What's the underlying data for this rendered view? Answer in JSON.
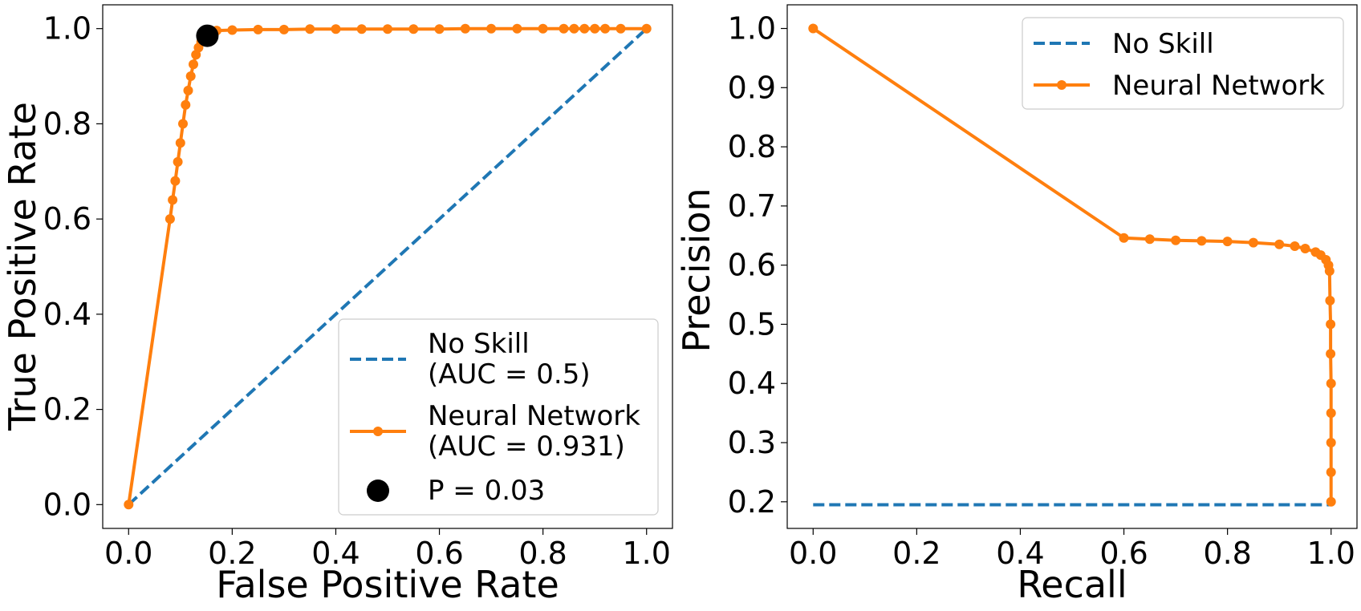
{
  "chart_data": [
    {
      "type": "line",
      "xlabel": "False Positive Rate",
      "ylabel": "True Positive Rate",
      "xlim": [
        -0.05,
        1.05
      ],
      "ylim": [
        -0.05,
        1.05
      ],
      "xticks": [
        "0.0",
        "0.2",
        "0.4",
        "0.6",
        "0.8",
        "1.0"
      ],
      "yticks": [
        "0.0",
        "0.2",
        "0.4",
        "0.6",
        "0.8",
        "1.0"
      ],
      "legend_position": "lower-right",
      "series": [
        {
          "name": "No Skill",
          "legend_lines": [
            "No Skill",
            "(AUC = 0.5)"
          ],
          "style": "dashed",
          "color": "#1f77b4",
          "x": [
            0,
            1
          ],
          "y": [
            0,
            1
          ]
        },
        {
          "name": "Neural Network",
          "legend_lines": [
            "Neural Network",
            "(AUC = 0.931)"
          ],
          "style": "solid-markers",
          "color": "#ff7f0e",
          "x": [
            0,
            0.08,
            0.085,
            0.09,
            0.095,
            0.1,
            0.105,
            0.11,
            0.115,
            0.12,
            0.125,
            0.13,
            0.135,
            0.14,
            0.145,
            0.15,
            0.155,
            0.16,
            0.17,
            0.2,
            0.25,
            0.3,
            0.35,
            0.4,
            0.45,
            0.5,
            0.55,
            0.6,
            0.65,
            0.7,
            0.75,
            0.8,
            0.84,
            0.86,
            0.88,
            0.9,
            0.92,
            0.95,
            1.0
          ],
          "y": [
            0,
            0.6,
            0.64,
            0.68,
            0.72,
            0.76,
            0.8,
            0.84,
            0.87,
            0.9,
            0.925,
            0.945,
            0.96,
            0.972,
            0.981,
            0.987,
            0.992,
            0.995,
            0.996,
            0.997,
            0.998,
            0.998,
            0.999,
            0.999,
            0.999,
            0.999,
            0.999,
            0.999,
            1.0,
            1.0,
            1.0,
            1.0,
            1.0,
            1.0,
            1.0,
            1.0,
            1.0,
            1.0,
            1.0
          ]
        },
        {
          "name": "P = 0.03",
          "legend_lines": [
            "P = 0.03"
          ],
          "style": "marker",
          "color": "#000000",
          "x": [
            0.152
          ],
          "y": [
            0.985
          ]
        }
      ]
    },
    {
      "type": "line",
      "xlabel": "Recall",
      "ylabel": "Precision",
      "xlim": [
        -0.05,
        1.05
      ],
      "ylim": [
        0.155,
        1.04
      ],
      "xticks": [
        "0.0",
        "0.2",
        "0.4",
        "0.6",
        "0.8",
        "1.0"
      ],
      "yticks": [
        "0.2",
        "0.3",
        "0.4",
        "0.5",
        "0.6",
        "0.7",
        "0.8",
        "0.9",
        "1.0"
      ],
      "legend_position": "upper-right",
      "series": [
        {
          "name": "No Skill",
          "legend_lines": [
            "No Skill"
          ],
          "style": "dashed",
          "color": "#1f77b4",
          "x": [
            0,
            1
          ],
          "y": [
            0.195,
            0.195
          ]
        },
        {
          "name": "Neural Network",
          "legend_lines": [
            "Neural Network"
          ],
          "style": "solid-markers",
          "color": "#ff7f0e",
          "x": [
            0,
            0.6,
            0.65,
            0.7,
            0.75,
            0.8,
            0.85,
            0.9,
            0.93,
            0.95,
            0.97,
            0.98,
            0.99,
            0.995,
            0.997,
            0.998,
            0.999,
            0.999,
            1.0,
            1.0,
            1.0,
            1.0,
            1.0
          ],
          "y": [
            1.0,
            0.646,
            0.644,
            0.642,
            0.641,
            0.64,
            0.638,
            0.635,
            0.632,
            0.628,
            0.622,
            0.617,
            0.609,
            0.6,
            0.59,
            0.54,
            0.5,
            0.45,
            0.4,
            0.35,
            0.3,
            0.25,
            0.2
          ]
        }
      ]
    }
  ]
}
